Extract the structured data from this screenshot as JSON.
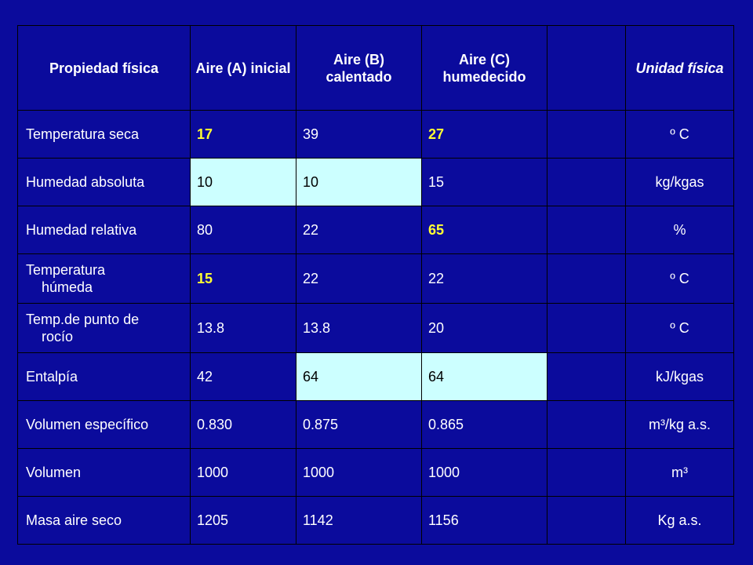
{
  "headers": [
    "Propiedad física",
    "Aire (A) inicial",
    "Aire (B) calentado",
    "Aire (C) humedecido",
    "",
    "Unidad física"
  ],
  "rows": [
    {
      "label": "Temperatura seca",
      "a": "17",
      "b": "39",
      "c": "27",
      "unit": "º C"
    },
    {
      "label": "Humedad absoluta",
      "a": "10",
      "b": "10",
      "c": "15",
      "unit": "kg/kgas"
    },
    {
      "label": "Humedad relativa",
      "a": "80",
      "b": "22",
      "c": "65",
      "unit": "%"
    },
    {
      "label_line1": "Temperatura",
      "label_line2": "húmeda",
      "a": "15",
      "b": "22",
      "c": "22",
      "unit": "º C"
    },
    {
      "label_line1": "Temp.de punto de",
      "label_line2": "rocío",
      "a": "13.8",
      "b": "13.8",
      "c": "20",
      "unit": "º C"
    },
    {
      "label": "Entalpía",
      "a": "42",
      "b": "64",
      "c": "64",
      "unit": "kJ/kgas"
    },
    {
      "label": "Volumen específico",
      "a": "0.830",
      "b": "0.875",
      "c": "0.865",
      "unit": "m³/kg a.s."
    },
    {
      "label": "Volumen",
      "a": "1000",
      "b": "1000",
      "c": "1000",
      "unit": "m³"
    },
    {
      "label": "Masa aire seco",
      "a": "1205",
      "b": "1142",
      "c": "1156",
      "unit": "Kg a.s."
    }
  ],
  "colors": {
    "background": "#0b0b9c",
    "highlight_text": "#ffff33",
    "highlight_cell": "#ccffff"
  }
}
